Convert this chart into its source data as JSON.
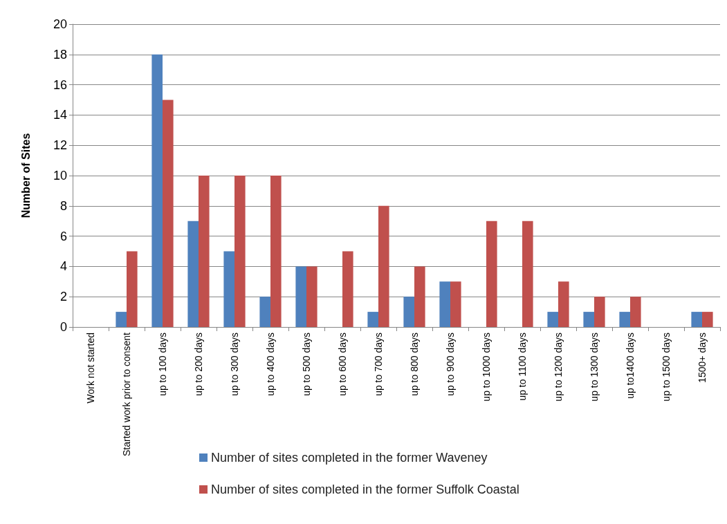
{
  "chart_data": {
    "type": "bar",
    "ylabel": "Number of Sites",
    "categories": [
      "Work not started",
      "Started work prior to consent",
      "up to 100 days",
      "up to 200 days",
      "up to 300 days",
      "up to 400 days",
      "up to 500 days",
      "up to 600 days",
      "up to 700 days",
      "up to 800 days",
      "up to 900 days",
      "up to 1000 days",
      "up to 1100 days",
      "up to 1200 days",
      "up to 1300 days",
      "up to1400 days",
      "up to 1500 days",
      "1500+ days"
    ],
    "series": [
      {
        "name": "Number of sites completed in the former Waveney",
        "color": "#4f81bd",
        "values": [
          0,
          1,
          18,
          7,
          5,
          2,
          4,
          0,
          1,
          2,
          3,
          0,
          0,
          1,
          1,
          1,
          0,
          1
        ]
      },
      {
        "name": "Number of sites completed in the former Suffolk Coastal",
        "color": "#c0504d",
        "values": [
          0,
          5,
          15,
          10,
          10,
          10,
          4,
          5,
          8,
          4,
          3,
          7,
          7,
          3,
          2,
          2,
          0,
          1
        ]
      }
    ],
    "ylim": [
      0,
      20
    ],
    "yticks": [
      0,
      2,
      4,
      6,
      8,
      10,
      12,
      14,
      16,
      18,
      20
    ],
    "grid": "y",
    "legend": "bottom"
  }
}
